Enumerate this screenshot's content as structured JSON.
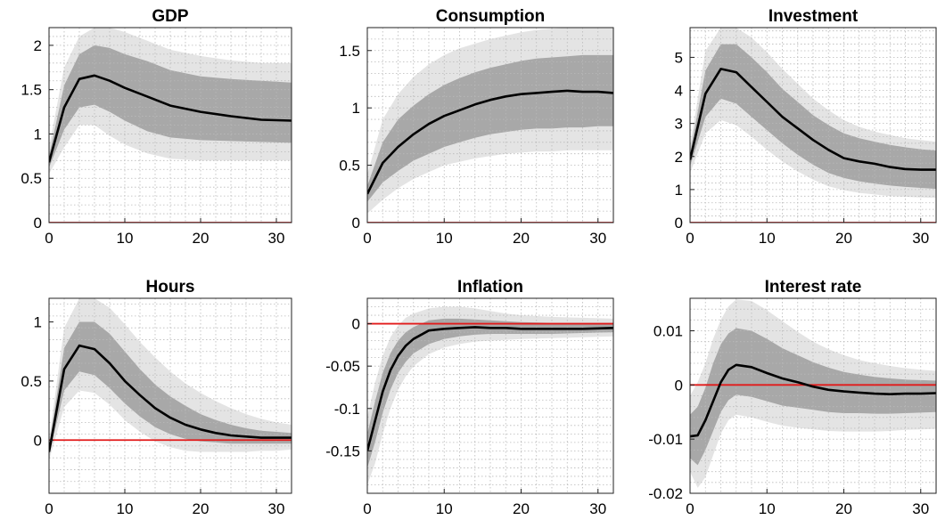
{
  "chart_data": [
    {
      "type": "line",
      "title": "GDP",
      "xlim": [
        0,
        32
      ],
      "ylim": [
        0,
        2.2
      ],
      "xticks": [
        0,
        10,
        20,
        30
      ],
      "yticks": [
        0,
        0.5,
        1,
        1.5,
        2
      ],
      "yticklabels": [
        "0",
        "0.5",
        "1",
        "1.5",
        "2"
      ],
      "grid": true,
      "zero_line": 0,
      "median": {
        "x": [
          0,
          2,
          4,
          6,
          8,
          10,
          13,
          16,
          20,
          24,
          28,
          32
        ],
        "y": [
          0.68,
          1.3,
          1.62,
          1.66,
          1.6,
          1.52,
          1.42,
          1.32,
          1.25,
          1.2,
          1.16,
          1.15
        ]
      },
      "band_inner": {
        "x": [
          0,
          2,
          4,
          6,
          8,
          10,
          13,
          16,
          20,
          24,
          28,
          32
        ],
        "lower": [
          0.62,
          1.05,
          1.3,
          1.33,
          1.25,
          1.15,
          1.03,
          0.96,
          0.93,
          0.92,
          0.91,
          0.9
        ],
        "upper": [
          0.75,
          1.55,
          1.9,
          2.0,
          1.97,
          1.9,
          1.82,
          1.72,
          1.65,
          1.62,
          1.6,
          1.58
        ]
      },
      "band_outer": {
        "x": [
          0,
          2,
          4,
          6,
          8,
          10,
          13,
          16,
          20,
          24,
          28,
          32
        ],
        "lower": [
          0.55,
          0.85,
          1.1,
          1.1,
          0.98,
          0.88,
          0.78,
          0.72,
          0.7,
          0.7,
          0.7,
          0.7
        ],
        "upper": [
          0.85,
          1.75,
          2.1,
          2.2,
          2.2,
          2.15,
          2.05,
          1.95,
          1.88,
          1.83,
          1.8,
          1.8
        ]
      }
    },
    {
      "type": "line",
      "title": "Consumption",
      "xlim": [
        0,
        32
      ],
      "ylim": [
        0,
        1.7
      ],
      "xticks": [
        0,
        10,
        20,
        30
      ],
      "yticks": [
        0,
        0.5,
        1,
        1.5
      ],
      "yticklabels": [
        "0",
        "0.5",
        "1",
        "1.5"
      ],
      "grid": true,
      "zero_line": 0,
      "median": {
        "x": [
          0,
          2,
          4,
          6,
          8,
          10,
          12,
          14,
          16,
          18,
          20,
          22,
          24,
          26,
          28,
          30,
          32
        ],
        "y": [
          0.25,
          0.52,
          0.66,
          0.77,
          0.86,
          0.93,
          0.98,
          1.03,
          1.07,
          1.1,
          1.12,
          1.13,
          1.14,
          1.15,
          1.14,
          1.14,
          1.13
        ]
      },
      "band_inner": {
        "x": [
          0,
          2,
          4,
          6,
          8,
          10,
          12,
          14,
          16,
          18,
          20,
          22,
          24,
          26,
          28,
          30,
          32
        ],
        "lower": [
          0.18,
          0.35,
          0.45,
          0.54,
          0.6,
          0.66,
          0.7,
          0.74,
          0.77,
          0.79,
          0.81,
          0.82,
          0.82,
          0.83,
          0.83,
          0.84,
          0.84
        ],
        "upper": [
          0.32,
          0.7,
          0.9,
          1.02,
          1.12,
          1.2,
          1.26,
          1.31,
          1.35,
          1.38,
          1.41,
          1.43,
          1.44,
          1.45,
          1.46,
          1.46,
          1.46
        ]
      },
      "band_outer": {
        "x": [
          0,
          2,
          4,
          6,
          8,
          10,
          12,
          14,
          16,
          18,
          20,
          22,
          24,
          26,
          28,
          30,
          32
        ],
        "lower": [
          0.08,
          0.2,
          0.3,
          0.38,
          0.44,
          0.5,
          0.53,
          0.56,
          0.58,
          0.6,
          0.61,
          0.62,
          0.62,
          0.63,
          0.63,
          0.63,
          0.63
        ],
        "upper": [
          0.42,
          0.9,
          1.12,
          1.27,
          1.38,
          1.46,
          1.52,
          1.56,
          1.6,
          1.63,
          1.66,
          1.68,
          1.69,
          1.7,
          1.7,
          1.7,
          1.7
        ]
      }
    },
    {
      "type": "line",
      "title": "Investment",
      "xlim": [
        0,
        32
      ],
      "ylim": [
        0,
        5.9
      ],
      "xticks": [
        0,
        10,
        20,
        30
      ],
      "yticks": [
        0,
        1,
        2,
        3,
        4,
        5
      ],
      "yticklabels": [
        "0",
        "1",
        "2",
        "3",
        "4",
        "5"
      ],
      "grid": true,
      "zero_line": 0,
      "median": {
        "x": [
          0,
          2,
          4,
          6,
          8,
          10,
          12,
          14,
          16,
          18,
          20,
          22,
          24,
          26,
          28,
          30,
          32
        ],
        "y": [
          1.9,
          3.9,
          4.65,
          4.55,
          4.1,
          3.65,
          3.2,
          2.85,
          2.5,
          2.2,
          1.95,
          1.85,
          1.78,
          1.68,
          1.62,
          1.6,
          1.6
        ]
      },
      "band_inner": {
        "x": [
          0,
          2,
          4,
          6,
          8,
          10,
          12,
          14,
          16,
          18,
          20,
          22,
          24,
          26,
          28,
          30,
          32
        ],
        "lower": [
          1.7,
          3.2,
          3.75,
          3.6,
          3.2,
          2.8,
          2.4,
          2.05,
          1.75,
          1.5,
          1.35,
          1.25,
          1.18,
          1.12,
          1.08,
          1.05,
          1.02
        ],
        "upper": [
          2.1,
          4.6,
          5.4,
          5.4,
          5.0,
          4.55,
          4.05,
          3.65,
          3.25,
          2.95,
          2.7,
          2.55,
          2.45,
          2.35,
          2.28,
          2.22,
          2.18
        ]
      },
      "band_outer": {
        "x": [
          0,
          2,
          4,
          6,
          8,
          10,
          12,
          14,
          16,
          18,
          20,
          22,
          24,
          26,
          28,
          30,
          32
        ],
        "lower": [
          1.5,
          2.7,
          3.1,
          2.95,
          2.6,
          2.2,
          1.85,
          1.55,
          1.3,
          1.1,
          0.98,
          0.9,
          0.85,
          0.8,
          0.78,
          0.76,
          0.75
        ],
        "upper": [
          2.3,
          5.2,
          5.9,
          5.9,
          5.6,
          5.15,
          4.65,
          4.2,
          3.75,
          3.4,
          3.1,
          2.9,
          2.75,
          2.65,
          2.55,
          2.5,
          2.45
        ]
      }
    },
    {
      "type": "line",
      "title": "Hours",
      "xlim": [
        0,
        32
      ],
      "ylim": [
        -0.45,
        1.2
      ],
      "xticks": [
        0,
        10,
        20,
        30
      ],
      "yticks": [
        0,
        0.5,
        1
      ],
      "yticklabels": [
        "0",
        "0.5",
        "1"
      ],
      "grid": true,
      "zero_line": 0,
      "median": {
        "x": [
          0,
          2,
          4,
          6,
          8,
          10,
          12,
          14,
          16,
          18,
          20,
          22,
          24,
          26,
          28,
          30,
          32
        ],
        "y": [
          -0.1,
          0.6,
          0.8,
          0.77,
          0.65,
          0.5,
          0.38,
          0.27,
          0.19,
          0.13,
          0.09,
          0.06,
          0.04,
          0.03,
          0.02,
          0.02,
          0.02
        ]
      },
      "band_inner": {
        "x": [
          0,
          2,
          4,
          6,
          8,
          10,
          12,
          14,
          16,
          18,
          20,
          22,
          24,
          26,
          28,
          30,
          32
        ],
        "lower": [
          -0.13,
          0.42,
          0.58,
          0.55,
          0.44,
          0.31,
          0.2,
          0.11,
          0.05,
          0.01,
          -0.01,
          -0.02,
          -0.03,
          -0.03,
          -0.03,
          -0.03,
          -0.03
        ],
        "upper": [
          -0.05,
          0.78,
          1.0,
          1.0,
          0.9,
          0.75,
          0.6,
          0.47,
          0.37,
          0.29,
          0.22,
          0.17,
          0.13,
          0.1,
          0.08,
          0.07,
          0.06
        ]
      },
      "band_outer": {
        "x": [
          0,
          2,
          4,
          6,
          8,
          10,
          12,
          14,
          16,
          18,
          20,
          22,
          24,
          26,
          28,
          30,
          32
        ],
        "lower": [
          -0.17,
          0.28,
          0.42,
          0.4,
          0.3,
          0.17,
          0.07,
          -0.01,
          -0.06,
          -0.09,
          -0.1,
          -0.1,
          -0.1,
          -0.1,
          -0.09,
          -0.09,
          -0.08
        ],
        "upper": [
          0.0,
          0.95,
          1.2,
          1.2,
          1.12,
          0.98,
          0.83,
          0.7,
          0.58,
          0.48,
          0.4,
          0.33,
          0.27,
          0.22,
          0.18,
          0.15,
          0.13
        ]
      }
    },
    {
      "type": "line",
      "title": "Inflation",
      "xlim": [
        0,
        32
      ],
      "ylim": [
        -0.2,
        0.03
      ],
      "xticks": [
        0,
        10,
        20,
        30
      ],
      "yticks": [
        -0.15,
        -0.1,
        -0.05,
        0
      ],
      "yticklabels": [
        "-0.15",
        "-0.1",
        "-0.05",
        "0"
      ],
      "grid": true,
      "zero_line": 0,
      "median": {
        "x": [
          0,
          1,
          2,
          3,
          4,
          5,
          6,
          8,
          10,
          12,
          14,
          16,
          18,
          20,
          24,
          28,
          32
        ],
        "y": [
          -0.15,
          -0.115,
          -0.08,
          -0.055,
          -0.038,
          -0.026,
          -0.018,
          -0.008,
          -0.006,
          -0.005,
          -0.004,
          -0.005,
          -0.005,
          -0.006,
          -0.006,
          -0.006,
          -0.005
        ]
      },
      "band_inner": {
        "x": [
          0,
          1,
          2,
          3,
          4,
          5,
          6,
          8,
          10,
          12,
          14,
          16,
          18,
          20,
          24,
          28,
          32
        ],
        "lower": [
          -0.17,
          -0.14,
          -0.105,
          -0.078,
          -0.058,
          -0.045,
          -0.035,
          -0.024,
          -0.018,
          -0.015,
          -0.013,
          -0.012,
          -0.012,
          -0.012,
          -0.012,
          -0.011,
          -0.01
        ],
        "upper": [
          -0.13,
          -0.092,
          -0.058,
          -0.035,
          -0.02,
          -0.01,
          -0.004,
          0.004,
          0.006,
          0.006,
          0.005,
          0.004,
          0.003,
          0.002,
          0.001,
          0.001,
          0.001
        ]
      },
      "band_outer": {
        "x": [
          0,
          1,
          2,
          3,
          4,
          5,
          6,
          8,
          10,
          12,
          14,
          16,
          18,
          20,
          24,
          28,
          32
        ],
        "lower": [
          -0.19,
          -0.165,
          -0.13,
          -0.1,
          -0.078,
          -0.062,
          -0.05,
          -0.036,
          -0.028,
          -0.024,
          -0.021,
          -0.02,
          -0.019,
          -0.018,
          -0.017,
          -0.016,
          -0.015
        ],
        "upper": [
          -0.11,
          -0.07,
          -0.038,
          -0.016,
          -0.002,
          0.007,
          0.012,
          0.018,
          0.02,
          0.02,
          0.018,
          0.015,
          0.012,
          0.01,
          0.008,
          0.007,
          0.006
        ]
      }
    },
    {
      "type": "line",
      "title": "Interest rate",
      "xlim": [
        0,
        32
      ],
      "ylim": [
        -0.02,
        0.016
      ],
      "xticks": [
        0,
        10,
        20,
        30
      ],
      "yticks": [
        -0.02,
        -0.01,
        0,
        0.01
      ],
      "yticklabels": [
        "-0.02",
        "-0.01",
        "0",
        "0.01"
      ],
      "grid": true,
      "zero_line": 0,
      "median": {
        "x": [
          0,
          1,
          2,
          3,
          4,
          5,
          6,
          8,
          10,
          12,
          14,
          16,
          18,
          20,
          22,
          24,
          26,
          28,
          30,
          32
        ],
        "y": [
          -0.0095,
          -0.0093,
          -0.0065,
          -0.003,
          0.0005,
          0.0028,
          0.0037,
          0.0033,
          0.0022,
          0.0012,
          0.0005,
          -0.0003,
          -0.0009,
          -0.0012,
          -0.0014,
          -0.0016,
          -0.0017,
          -0.0016,
          -0.0016,
          -0.0015
        ]
      },
      "band_inner": {
        "x": [
          0,
          1,
          2,
          3,
          4,
          5,
          6,
          8,
          10,
          12,
          14,
          16,
          18,
          20,
          22,
          24,
          26,
          28,
          30,
          32
        ],
        "lower": [
          -0.0135,
          -0.0148,
          -0.012,
          -0.0085,
          -0.005,
          -0.0028,
          -0.0018,
          -0.0022,
          -0.003,
          -0.0038,
          -0.0042,
          -0.0046,
          -0.005,
          -0.0052,
          -0.0052,
          -0.0053,
          -0.0053,
          -0.0052,
          -0.0051,
          -0.005
        ],
        "upper": [
          -0.0055,
          -0.004,
          -0.0005,
          0.004,
          0.0075,
          0.0095,
          0.0105,
          0.01,
          0.0085,
          0.0068,
          0.0055,
          0.0042,
          0.0032,
          0.0024,
          0.0019,
          0.0015,
          0.0012,
          0.001,
          0.0009,
          0.0008
        ]
      },
      "band_outer": {
        "x": [
          0,
          1,
          2,
          3,
          4,
          5,
          6,
          8,
          10,
          12,
          14,
          16,
          18,
          20,
          22,
          24,
          26,
          28,
          30,
          32
        ],
        "lower": [
          -0.016,
          -0.019,
          -0.017,
          -0.013,
          -0.009,
          -0.0065,
          -0.0055,
          -0.006,
          -0.0068,
          -0.0075,
          -0.0079,
          -0.0082,
          -0.0085,
          -0.0086,
          -0.0086,
          -0.0086,
          -0.0085,
          -0.0083,
          -0.0082,
          -0.0081
        ],
        "upper": [
          -0.002,
          0.0005,
          0.004,
          0.0085,
          0.012,
          0.0145,
          0.0158,
          0.0155,
          0.0138,
          0.0118,
          0.0098,
          0.008,
          0.0066,
          0.0055,
          0.0046,
          0.004,
          0.0035,
          0.0031,
          0.0028,
          0.0026
        ]
      }
    }
  ]
}
